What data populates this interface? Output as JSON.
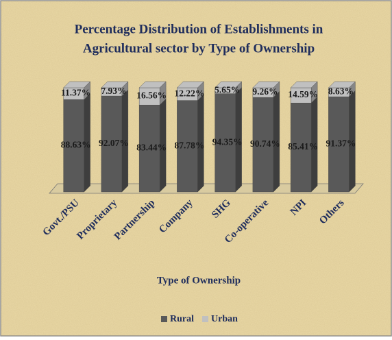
{
  "chart_data": {
    "type": "bar",
    "stacked": true,
    "title": "Percentage Distribution of Establishments in",
    "subtitle": "Agricultural sector by Type of Ownership",
    "x_label": "Type of Ownership",
    "categories": [
      "Govt./PSU",
      "Proprietary",
      "Partnership",
      "Company",
      "SHG",
      "Co-operative",
      "NPI",
      "Others"
    ],
    "series": [
      {
        "name": "Rural",
        "color": "#595959",
        "values": [
          88.63,
          92.07,
          83.44,
          87.78,
          94.35,
          90.74,
          85.41,
          91.37
        ],
        "value_labels": [
          "88.63%",
          "92.07%",
          "83.44%",
          "87.78%",
          "94.35%",
          "90.74%",
          "85.41%",
          "91.37%"
        ]
      },
      {
        "name": "Urban",
        "color": "#c0c0c0",
        "values": [
          11.37,
          7.93,
          16.56,
          12.22,
          5.65,
          9.26,
          14.59,
          8.63
        ],
        "value_labels": [
          "11.37%",
          "7.93%",
          "16.56%",
          "12.22%",
          "5.65%",
          "9.26%",
          "14.59%",
          "8.63%"
        ]
      }
    ],
    "legend": "bottom"
  }
}
